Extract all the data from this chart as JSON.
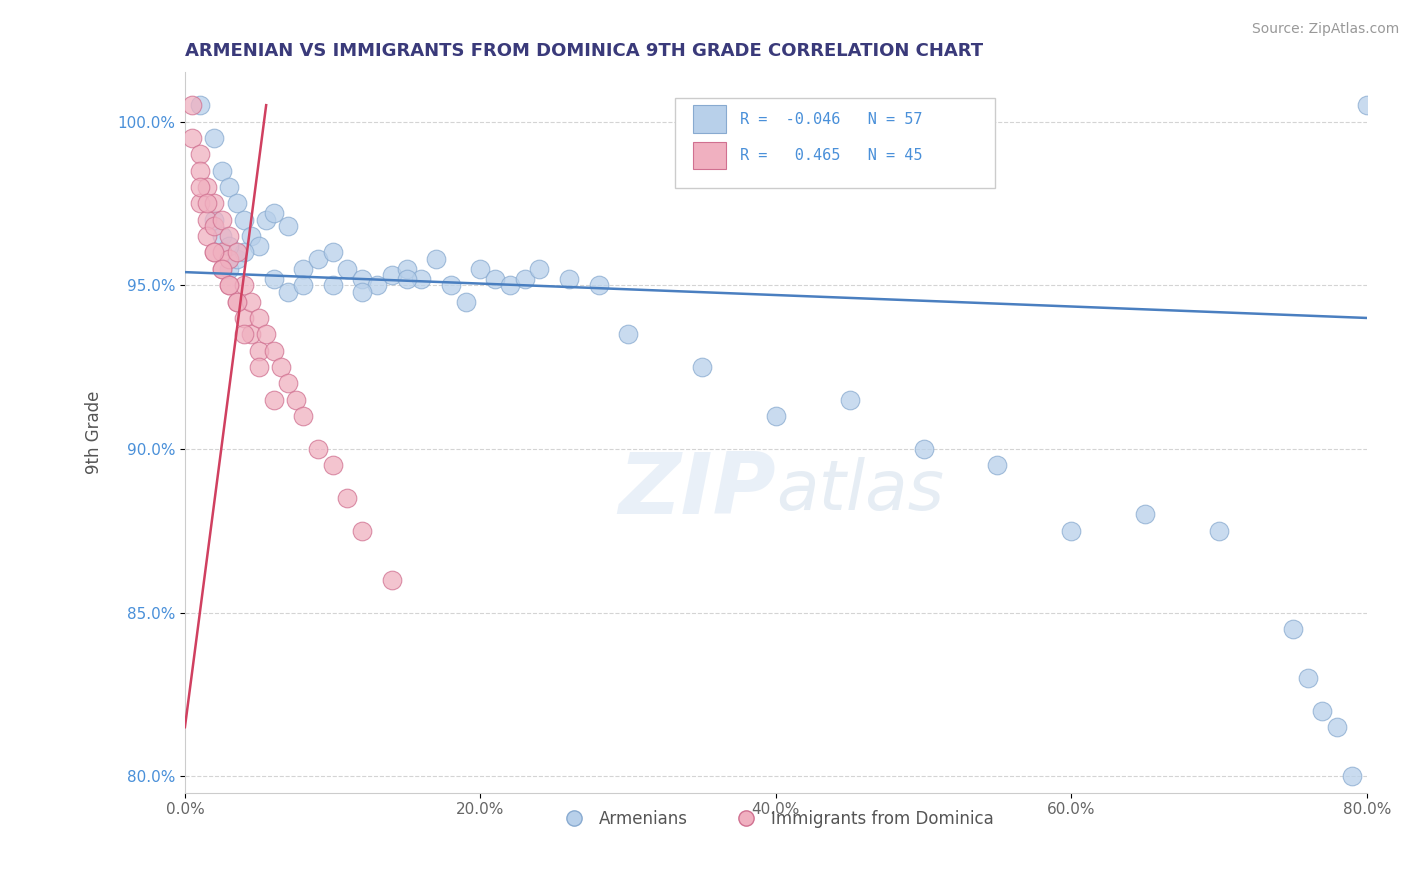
{
  "title": "ARMENIAN VS IMMIGRANTS FROM DOMINICA 9TH GRADE CORRELATION CHART",
  "source": "Source: ZipAtlas.com",
  "xlabel": "",
  "ylabel": "9th Grade",
  "xlim": [
    0.0,
    80.0
  ],
  "ylim": [
    79.5,
    101.5
  ],
  "xticks": [
    0.0,
    20.0,
    40.0,
    60.0,
    80.0
  ],
  "yticks": [
    80.0,
    85.0,
    90.0,
    95.0,
    100.0
  ],
  "blue_R": -0.046,
  "blue_N": 57,
  "pink_R": 0.465,
  "pink_N": 45,
  "blue_label": "Armenians",
  "pink_label": "Immigrants from Dominica",
  "background_color": "#ffffff",
  "grid_color": "#d0d0d0",
  "title_color": "#3a3a7a",
  "source_color": "#999999",
  "blue_scatter_color": "#b8d0ea",
  "blue_scatter_edge": "#88aad0",
  "pink_scatter_color": "#f0b0c0",
  "pink_scatter_edge": "#d07090",
  "blue_line_color": "#4a7fc0",
  "pink_line_color": "#d04060",
  "blue_trend_x0": 0.0,
  "blue_trend_y0": 95.4,
  "blue_trend_x1": 80.0,
  "blue_trend_y1": 94.0,
  "pink_trend_x0": 0.0,
  "pink_trend_y0": 81.5,
  "pink_trend_x1": 5.5,
  "pink_trend_y1": 100.5,
  "blue_x": [
    1.0,
    2.0,
    2.5,
    3.0,
    3.5,
    4.0,
    4.5,
    5.0,
    5.5,
    6.0,
    7.0,
    8.0,
    9.0,
    10.0,
    11.0,
    12.0,
    13.0,
    14.0,
    15.0,
    16.0,
    17.0,
    18.0,
    19.0,
    20.0,
    21.0,
    22.0,
    23.0,
    24.0,
    26.0,
    28.0,
    30.0,
    35.0,
    40.0,
    45.0,
    50.0,
    55.0,
    60.0,
    65.0,
    70.0,
    75.0,
    76.0,
    77.0,
    78.0,
    79.0,
    80.0,
    3.0,
    3.5,
    4.0,
    2.0,
    2.5,
    3.0,
    6.0,
    7.0,
    8.0,
    10.0,
    12.0,
    15.0
  ],
  "blue_y": [
    100.5,
    99.5,
    98.5,
    98.0,
    97.5,
    97.0,
    96.5,
    96.2,
    97.0,
    97.2,
    96.8,
    95.5,
    95.8,
    96.0,
    95.5,
    95.2,
    95.0,
    95.3,
    95.5,
    95.2,
    95.8,
    95.0,
    94.5,
    95.5,
    95.2,
    95.0,
    95.2,
    95.5,
    95.2,
    95.0,
    93.5,
    92.5,
    91.0,
    91.5,
    90.0,
    89.5,
    87.5,
    88.0,
    87.5,
    84.5,
    83.0,
    82.0,
    81.5,
    80.0,
    100.5,
    95.5,
    95.8,
    96.0,
    97.0,
    96.5,
    96.2,
    95.2,
    94.8,
    95.0,
    95.0,
    94.8,
    95.2
  ],
  "pink_x": [
    0.5,
    0.5,
    1.0,
    1.0,
    1.0,
    1.5,
    1.5,
    1.5,
    2.0,
    2.0,
    2.0,
    2.5,
    2.5,
    2.5,
    3.0,
    3.0,
    3.0,
    3.5,
    3.5,
    4.0,
    4.0,
    4.5,
    4.5,
    5.0,
    5.0,
    5.5,
    6.0,
    6.5,
    7.0,
    7.5,
    8.0,
    9.0,
    10.0,
    11.0,
    12.0,
    14.0,
    1.0,
    1.5,
    2.0,
    2.5,
    3.0,
    3.5,
    4.0,
    5.0,
    6.0
  ],
  "pink_y": [
    100.5,
    99.5,
    99.0,
    98.5,
    97.5,
    98.0,
    97.0,
    96.5,
    97.5,
    96.8,
    96.0,
    97.0,
    96.0,
    95.5,
    96.5,
    95.8,
    95.0,
    96.0,
    94.5,
    95.0,
    94.0,
    94.5,
    93.5,
    94.0,
    93.0,
    93.5,
    93.0,
    92.5,
    92.0,
    91.5,
    91.0,
    90.0,
    89.5,
    88.5,
    87.5,
    86.0,
    98.0,
    97.5,
    96.0,
    95.5,
    95.0,
    94.5,
    93.5,
    92.5,
    91.5
  ]
}
